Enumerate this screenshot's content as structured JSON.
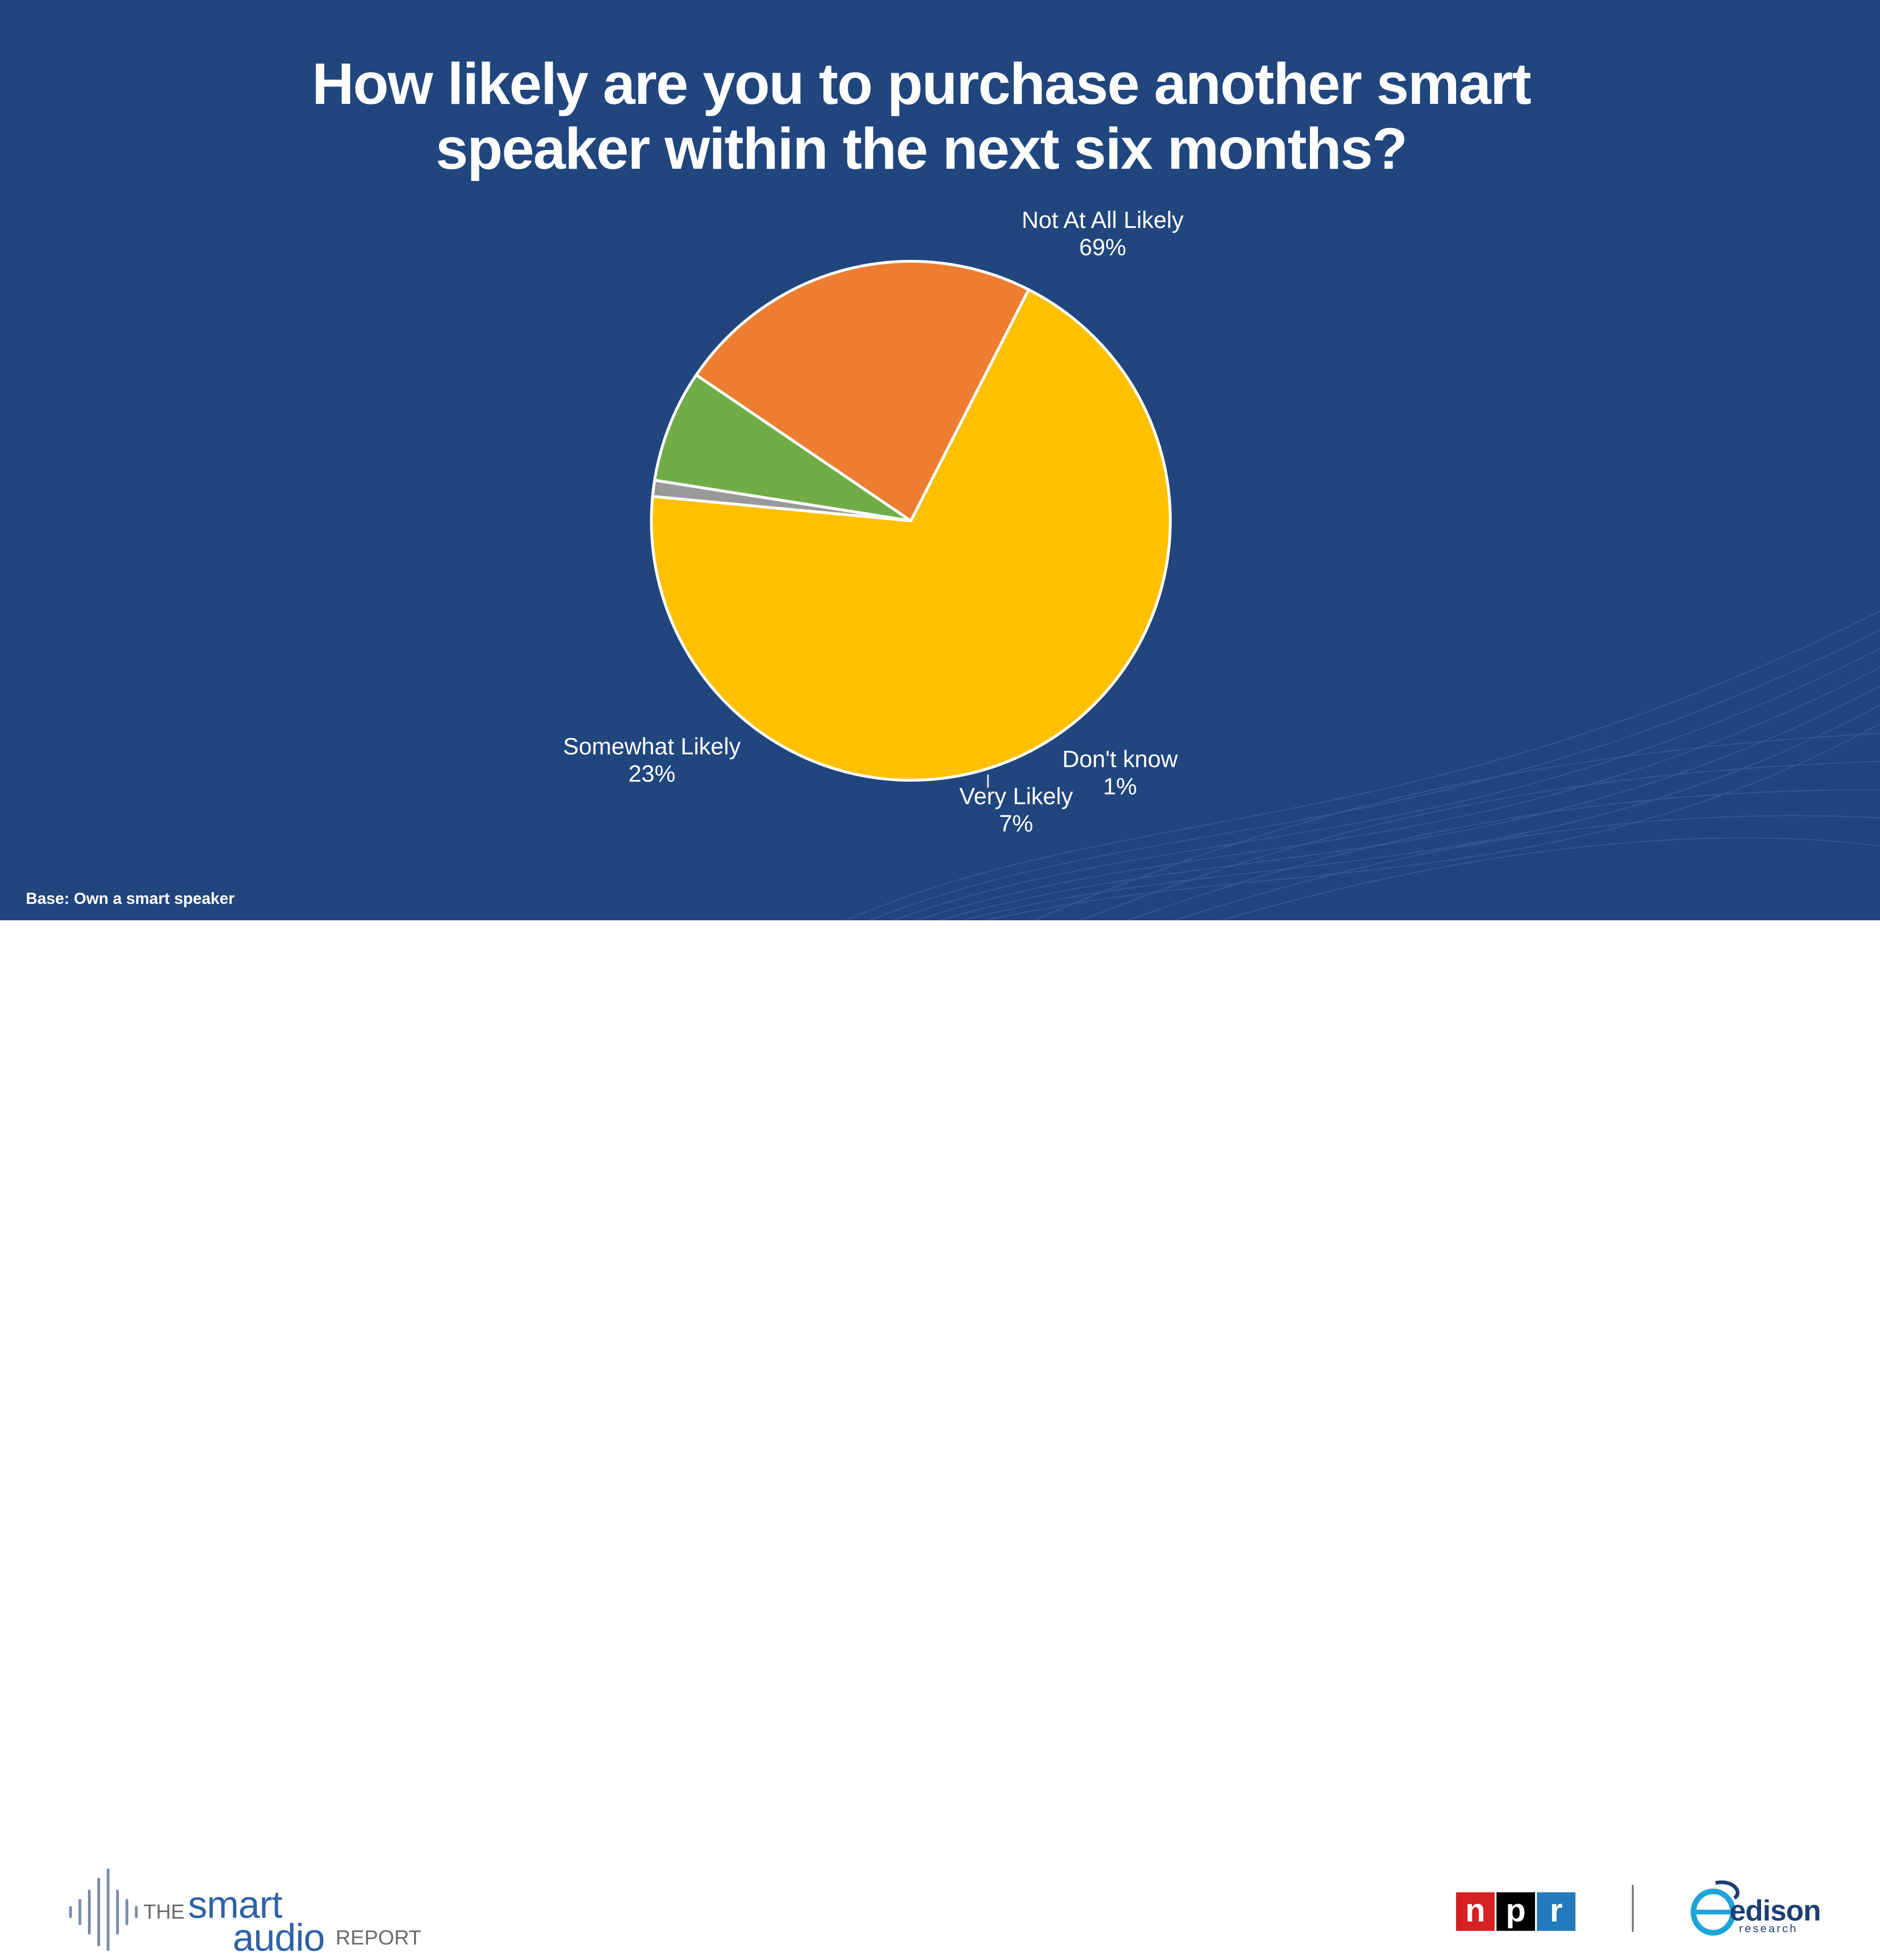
{
  "slide": {
    "title_line1": "How likely are you to purchase another smart",
    "title_line2": "speaker within the next six months?",
    "base_note": "Base: Own a smart speaker"
  },
  "chart_data": {
    "type": "pie",
    "title": "How likely are you to purchase another smart speaker within the next six months?",
    "slices": [
      {
        "name": "Not At All Likely",
        "value": 69,
        "label": "69%",
        "color": "#ffc000"
      },
      {
        "name": "Don't know",
        "value": 1,
        "label": "1%",
        "color": "#999999"
      },
      {
        "name": "Very Likely",
        "value": 7,
        "label": "7%",
        "color": "#70ad47"
      },
      {
        "name": "Somewhat Likely",
        "value": 23,
        "label": "23%",
        "color": "#ed7d31"
      }
    ],
    "legend": "none",
    "data_labels": "category and percent"
  },
  "footer": {
    "sar_the": "THE",
    "sar_smart": "smart",
    "sar_audio": "audio",
    "sar_report": "REPORT",
    "npr_n": "n",
    "npr_p": "p",
    "npr_r": "r",
    "edison_word": "edison",
    "edison_sub": "research"
  },
  "colors": {
    "background": "#21467e",
    "footer_background": "#ffffff"
  }
}
